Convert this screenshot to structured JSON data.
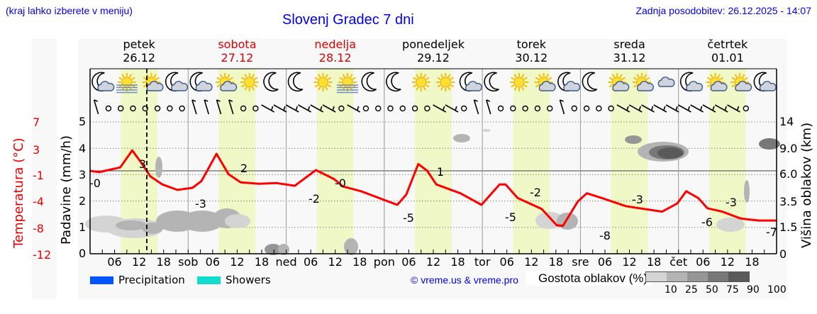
{
  "header": {
    "location_hint": "(kraj lahko izberete v meniju)",
    "title": "Slovenj Gradec 7 dni",
    "last_update": "Zadnja posodobitev: 26.12.2025 - 14:07"
  },
  "days": [
    {
      "name": "petek",
      "date": "26.12",
      "color": "#000000"
    },
    {
      "name": "sobota",
      "date": "27.12",
      "color": "#dd0000"
    },
    {
      "name": "nedelja",
      "date": "28.12",
      "color": "#dd0000"
    },
    {
      "name": "ponedeljek",
      "date": "29.12",
      "color": "#000000"
    },
    {
      "name": "torek",
      "date": "30.12",
      "color": "#000000"
    },
    {
      "name": "sreda",
      "date": "31.12",
      "color": "#000000"
    },
    {
      "name": "četrtek",
      "date": "01.01",
      "color": "#000000"
    }
  ],
  "weather_icons": [
    "moon-cloud-icon",
    "sun-fog-icon",
    "sun-cloud-icon",
    "moon-cloud-icon",
    "moon-cloud-icon",
    "sun-cloud-icon",
    "sun-icon",
    "moon-icon",
    "moon-icon",
    "sun-icon",
    "sun-fog-icon",
    "moon-icon",
    "moon-icon",
    "sun-icon",
    "sun-icon",
    "moon-cloud-icon",
    "moon-icon",
    "sun-icon",
    "sun-cloud-icon",
    "moon-cloud-icon",
    "moon-icon",
    "sun-cloud-icon",
    "sun-cloud-icon",
    "cloud-icon",
    "moon-cloud-icon",
    "sun-cloud-icon",
    "sun-cloud-icon",
    "moon-cloud-icon"
  ],
  "axes": {
    "left_temp_title": "Temperatura (°C)",
    "left_temp_ticks": [
      "7",
      "3",
      "-1",
      "-4",
      "-8",
      "-12"
    ],
    "left_precip_title": "Padavine (mm/h)",
    "left_precip_ticks": [
      "5",
      "4",
      "3",
      "2",
      "1",
      "0"
    ],
    "right_title": "Višina oblakov (km)",
    "right_ticks": [
      "14",
      "9.0",
      "6.0",
      "3.5",
      "1.5",
      "0"
    ],
    "x_ticks": [
      "06",
      "12",
      "18",
      "sob",
      "06",
      "12",
      "18",
      "ned",
      "06",
      "12",
      "18",
      "pon",
      "06",
      "12",
      "18",
      "tor",
      "06",
      "12",
      "18",
      "sre",
      "06",
      "12",
      "18",
      "čet",
      "06",
      "12",
      "18"
    ]
  },
  "legend": {
    "precipitation_label": "Precipitation",
    "precipitation_color": "#0055ff",
    "showers_label": "Showers",
    "showers_color": "#11ddcc",
    "copyright": "© vreme.us & vreme.pro",
    "cloud_density_title": "Gostota oblakov (%)",
    "cloud_density_ticks": [
      "10",
      "25",
      "50",
      "75",
      "90",
      "100"
    ],
    "cloud_density_colors": [
      "#d4d4d4",
      "#b4b4b4",
      "#969696",
      "#787878",
      "#5a5a5a"
    ]
  },
  "colors": {
    "temperature_line": "#ff0000",
    "daylight_band": "#f0f8c8",
    "now_line": "#000000"
  },
  "chart_data": {
    "type": "line",
    "title": "Slovenj Gradec 7 dni",
    "xlabel": "",
    "ylabel": "Temperatura (°C)",
    "ylabel_secondary": "Padavine (mm/h)",
    "ylabel_right": "Višina oblakov (km)",
    "x_range": [
      "26.12 00:00",
      "01.01 24:00"
    ],
    "precip_ylim": [
      0,
      5
    ],
    "temp_axis_ticks": [
      7,
      3,
      -1,
      -4,
      -8,
      -12
    ],
    "cloud_height_ticks": [
      0,
      1.5,
      3.5,
      6.0,
      9.0,
      14
    ],
    "grid": true,
    "now_marker": "26.12 14:07",
    "series": [
      {
        "name": "Temperatura",
        "annotations": [
          {
            "time": "26.12 00:00",
            "value": 0,
            "label": "-0"
          },
          {
            "time": "26.12 14:00",
            "value": 3,
            "label": "3"
          },
          {
            "time": "27.12 05:00",
            "value": -3,
            "label": "-3"
          },
          {
            "time": "27.12 13:00",
            "value": 2,
            "label": "2"
          },
          {
            "time": "28.12 07:00",
            "value": -2,
            "label": "-2"
          },
          {
            "time": "28.12 14:00",
            "value": 0,
            "label": "-0"
          },
          {
            "time": "29.12 07:00",
            "value": -5,
            "label": "-5"
          },
          {
            "time": "29.12 13:00",
            "value": 1,
            "label": "1"
          },
          {
            "time": "30.12 07:00",
            "value": -5,
            "label": "-5"
          },
          {
            "time": "30.12 13:00",
            "value": -2,
            "label": "-2"
          },
          {
            "time": "31.12 07:00",
            "value": -8,
            "label": "-8"
          },
          {
            "time": "31.12 14:00",
            "value": -3,
            "label": "-3"
          },
          {
            "time": "01.01 07:00",
            "value": -6,
            "label": "-6"
          },
          {
            "time": "01.01 13:00",
            "value": -3,
            "label": "-3"
          },
          {
            "time": "01.01 24:00",
            "value": -7,
            "label": "-7"
          }
        ]
      }
    ],
    "legend": [
      "Precipitation",
      "Showers"
    ],
    "cloud_density_legend": [
      10,
      25,
      50,
      75,
      90,
      100
    ]
  }
}
